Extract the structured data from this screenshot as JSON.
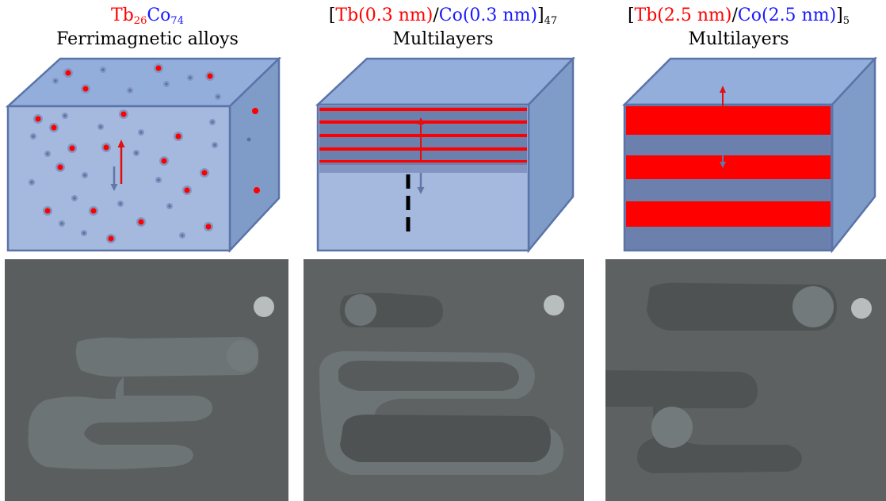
{
  "panels": [
    {
      "title_line1": [
        {
          "text": "Tb",
          "color": "red"
        },
        {
          "sub": "26",
          "color": "red"
        },
        {
          "text": "Co",
          "color": "blue"
        },
        {
          "sub": "74",
          "color": "blue"
        }
      ],
      "title_line2": "Ferrimagnetic alloys",
      "schematic": "ferrimagnetic-alloy-cube",
      "photo": "domain-pattern-1"
    },
    {
      "title_line1": [
        {
          "text": "[",
          "color": "black"
        },
        {
          "text": "Tb(0.3 nm)",
          "color": "red"
        },
        {
          "text": "/",
          "color": "black"
        },
        {
          "text": "Co(0.3 nm)",
          "color": "blue"
        },
        {
          "text": "]",
          "color": "black"
        },
        {
          "sub": "47",
          "color": "black"
        }
      ],
      "title_line2": "Multilayers",
      "schematic": "thin-multilayer-cube",
      "photo": "domain-pattern-2"
    },
    {
      "title_line1": [
        {
          "text": "[",
          "color": "black"
        },
        {
          "text": "Tb(2.5 nm)",
          "color": "red"
        },
        {
          "text": "/",
          "color": "black"
        },
        {
          "text": "Co(2.5 nm)",
          "color": "blue"
        },
        {
          "text": "]",
          "color": "black"
        },
        {
          "sub": "5",
          "color": "black"
        }
      ],
      "title_line2": "Multilayers",
      "schematic": "thick-multilayer-cube",
      "photo": "domain-pattern-3"
    }
  ],
  "colors": {
    "tb": "#ff0000",
    "co": "#1a1aff",
    "cube_front": "#a4b9dd",
    "cube_top": "#93aedb",
    "cube_side": "#7f9cc9",
    "cube_edge": "#5a73a8",
    "tb_layer": "#ff0000",
    "co_layer": "#6b80ad",
    "photo_bg": "#5f6264",
    "photo_mark": "#6c7475"
  }
}
